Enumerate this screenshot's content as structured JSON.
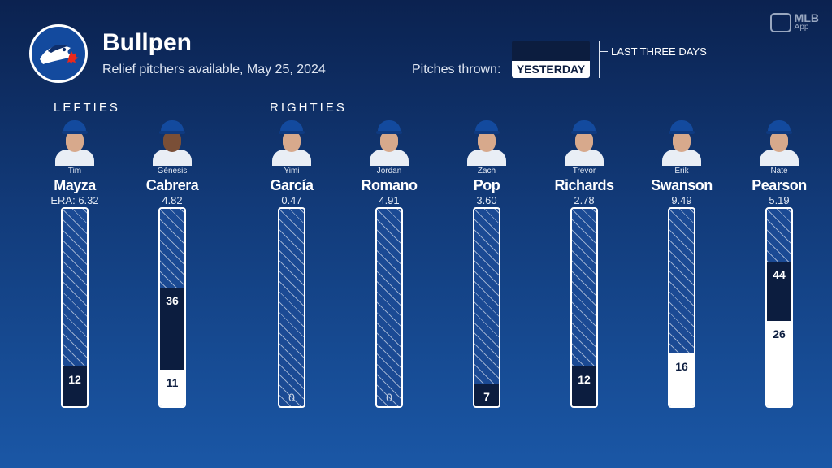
{
  "header": {
    "title": "Bullpen",
    "subtitle": "Relief pitchers available, May 25, 2024",
    "legend_label": "Pitches thrown:",
    "legend_yesterday": "YESTERDAY",
    "legend_three_days": "LAST THREE DAYS",
    "brand_logo_icon": "blue-jays-logo-icon",
    "app_badge": {
      "text": "MLB",
      "sub": "App"
    }
  },
  "sections": {
    "lefties": "LEFTIES",
    "righties": "RIGHTIES"
  },
  "colors": {
    "background_top": "#0b2250",
    "background_bottom": "#1a57a6",
    "last_three_days": "#0c1d3f",
    "yesterday": "#ffffff",
    "available": "#1b4a94"
  },
  "scale_max_pitches": 60,
  "pitchers": [
    {
      "first": "Tim",
      "last": "Mayza",
      "era": "ERA: 6.32",
      "yesterday": 0,
      "last_three_days": 12,
      "three_days_label": "12",
      "yesterday_label": ""
    },
    {
      "first": "Génesis",
      "last": "Cabrera",
      "era": "4.82",
      "yesterday": 11,
      "last_three_days": 36,
      "three_days_label": "36",
      "yesterday_label": "11"
    },
    {
      "first": "Yimi",
      "last": "García",
      "era": "0.47",
      "yesterday": 0,
      "last_three_days": 0,
      "three_days_label": "0",
      "yesterday_label": ""
    },
    {
      "first": "Jordan",
      "last": "Romano",
      "era": "4.91",
      "yesterday": 0,
      "last_three_days": 0,
      "three_days_label": "0",
      "yesterday_label": ""
    },
    {
      "first": "Zach",
      "last": "Pop",
      "era": "3.60",
      "yesterday": 0,
      "last_three_days": 7,
      "three_days_label": "7",
      "yesterday_label": ""
    },
    {
      "first": "Trevor",
      "last": "Richards",
      "era": "2.78",
      "yesterday": 0,
      "last_three_days": 12,
      "three_days_label": "12",
      "yesterday_label": ""
    },
    {
      "first": "Erik",
      "last": "Swanson",
      "era": "9.49",
      "yesterday": 16,
      "last_three_days": 16,
      "three_days_label": "",
      "yesterday_label": "16"
    },
    {
      "first": "Nate",
      "last": "Pearson",
      "era": "5.19",
      "yesterday": 26,
      "last_three_days": 44,
      "three_days_label": "44",
      "yesterday_label": "26"
    }
  ]
}
